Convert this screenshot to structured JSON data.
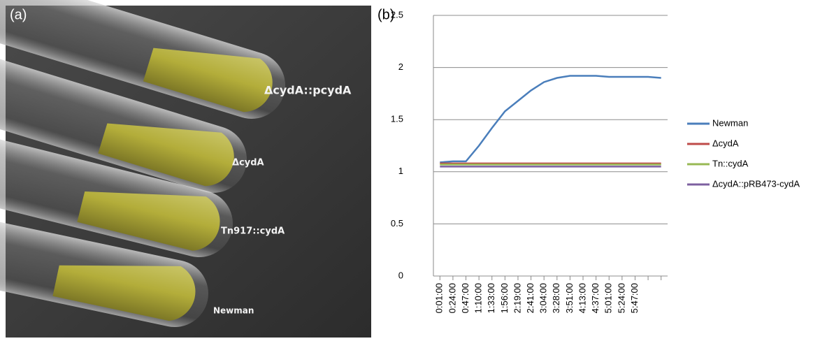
{
  "photo": {
    "panel_label": "(a)",
    "labels": [
      "ΔcydA::pcydA",
      "ΔcydA",
      "Tn917::cydA",
      "Newman"
    ]
  },
  "chart_data": {
    "type": "line",
    "title": "(b)",
    "categories": [
      "0:01:00",
      "0:24:00",
      "0:47:00",
      "1:10:00",
      "1:33:00",
      "1:56:00",
      "2:19:00",
      "2:41:00",
      "3:04:00",
      "3:28:00",
      "3:51:00",
      "4:13:00",
      "4:37:00",
      "5:01:00",
      "5:24:00",
      "5:47:00",
      null,
      null
    ],
    "series": [
      {
        "name": "Newman",
        "color": "#4a7ebb",
        "values": [
          1.09,
          1.1,
          1.1,
          1.25,
          1.42,
          1.58,
          1.68,
          1.78,
          1.86,
          1.9,
          1.92,
          1.92,
          1.92,
          1.91,
          1.91,
          1.91,
          1.91,
          1.9
        ]
      },
      {
        "name": "ΔcydA",
        "color": "#be4b48",
        "values": [
          1.08,
          1.08,
          1.08,
          1.08,
          1.08,
          1.08,
          1.08,
          1.08,
          1.08,
          1.08,
          1.08,
          1.08,
          1.08,
          1.08,
          1.08,
          1.08,
          1.08,
          1.08
        ]
      },
      {
        "name": "Tn::cydA",
        "color": "#98b954",
        "values": [
          1.07,
          1.07,
          1.07,
          1.07,
          1.07,
          1.07,
          1.07,
          1.07,
          1.07,
          1.07,
          1.07,
          1.07,
          1.07,
          1.07,
          1.07,
          1.07,
          1.07,
          1.07
        ]
      },
      {
        "name": "ΔcydA::pRB473-cydA",
        "color": "#7d60a0",
        "values": [
          1.05,
          1.05,
          1.05,
          1.05,
          1.05,
          1.05,
          1.05,
          1.05,
          1.05,
          1.05,
          1.05,
          1.05,
          1.05,
          1.05,
          1.05,
          1.05,
          1.05,
          1.05
        ]
      }
    ],
    "ylim": [
      0,
      2.5
    ],
    "yticks": [
      0,
      0.5,
      1,
      1.5,
      2,
      2.5
    ],
    "grid": true,
    "legend": "right"
  }
}
